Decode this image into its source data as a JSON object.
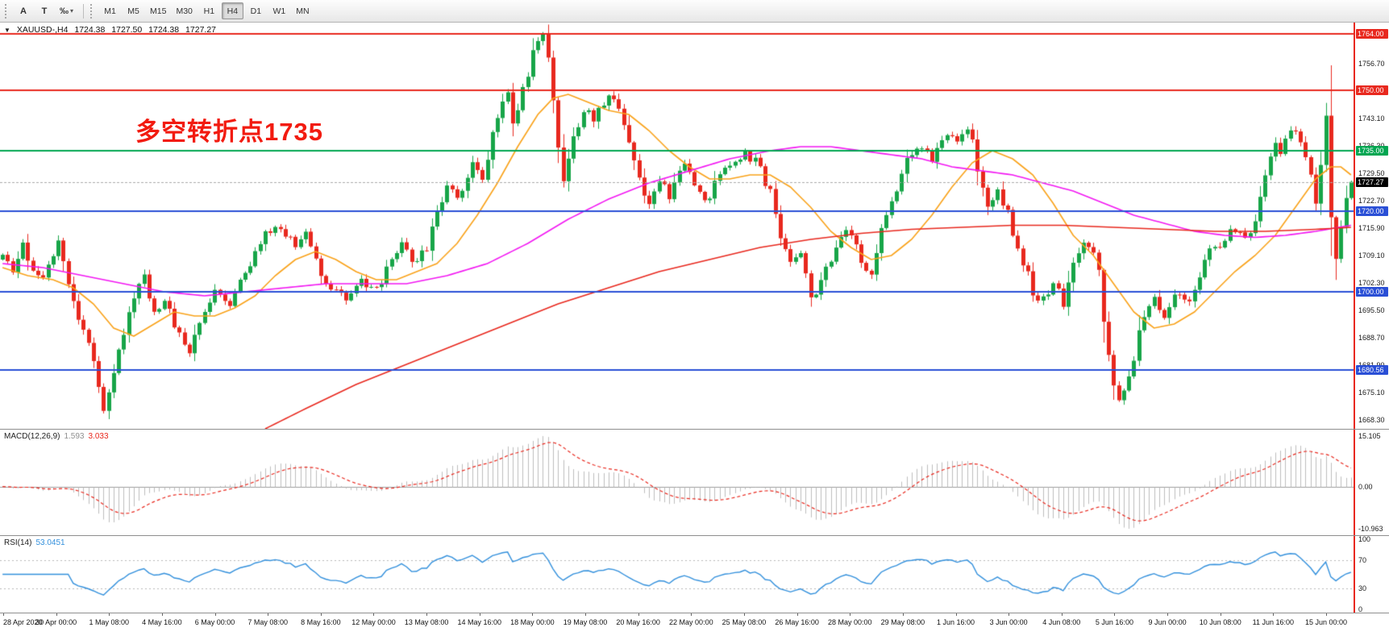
{
  "toolbar": {
    "buttons": [
      {
        "id": "arrow-tool",
        "label": "A"
      },
      {
        "id": "text-tool",
        "label": "T"
      },
      {
        "id": "fibonacci-tool",
        "label": "‰"
      }
    ],
    "timeframes": [
      {
        "label": "M1"
      },
      {
        "label": "M5"
      },
      {
        "label": "M15"
      },
      {
        "label": "M30"
      },
      {
        "label": "H1"
      },
      {
        "label": "H4",
        "active": true
      },
      {
        "label": "D1"
      },
      {
        "label": "W1"
      },
      {
        "label": "MN"
      }
    ]
  },
  "chart": {
    "collapse_icon": "▼",
    "symbol": "XAUUSD-,H4",
    "open": "1724.38",
    "high": "1727.50",
    "low": "1724.38",
    "close": "1727.27",
    "annotation": {
      "text": "多空转折点1735",
      "color": "#f21b10"
    }
  },
  "indicators": {
    "macd": {
      "label": "MACD(12,26,9)",
      "main_value": "1.593",
      "signal_value": "3.033",
      "axis_labels": [
        "15.105",
        "0.00",
        "-10.963"
      ]
    },
    "rsi": {
      "label": "RSI(14)",
      "value": "53.0451",
      "axis_labels": [
        "100",
        "70",
        "30",
        "0"
      ]
    }
  },
  "chart_data": {
    "type": "candlestick",
    "symbol": "XAUUSD",
    "timeframe": "H4",
    "ylim": [
      1666.0,
      1766.8
    ],
    "n_bars": 268,
    "last_close": 1727.27,
    "bull_color": "#17a548",
    "bear_color": "#e8281e",
    "close_waypoints": [
      [
        0,
        1708
      ],
      [
        2,
        1705
      ],
      [
        4,
        1711
      ],
      [
        6,
        1706
      ],
      [
        8,
        1704
      ],
      [
        10,
        1710
      ],
      [
        11,
        1714
      ],
      [
        13,
        1703
      ],
      [
        14,
        1697
      ],
      [
        16,
        1690
      ],
      [
        17,
        1688
      ],
      [
        18,
        1682
      ],
      [
        19,
        1676
      ],
      [
        20,
        1671
      ],
      [
        21,
        1676
      ],
      [
        23,
        1686
      ],
      [
        25,
        1694
      ],
      [
        26,
        1699
      ],
      [
        28,
        1704
      ],
      [
        30,
        1695
      ],
      [
        32,
        1698
      ],
      [
        34,
        1692
      ],
      [
        35,
        1690
      ],
      [
        37,
        1685
      ],
      [
        39,
        1692
      ],
      [
        41,
        1698
      ],
      [
        42,
        1701
      ],
      [
        44,
        1699
      ],
      [
        45,
        1697
      ],
      [
        47,
        1703
      ],
      [
        49,
        1707
      ],
      [
        51,
        1711
      ],
      [
        52,
        1714
      ],
      [
        54,
        1716
      ],
      [
        55,
        1715
      ],
      [
        57,
        1713
      ],
      [
        58,
        1711
      ],
      [
        60,
        1715
      ],
      [
        62,
        1709
      ],
      [
        63,
        1705
      ],
      [
        65,
        1700
      ],
      [
        67,
        1699
      ],
      [
        68,
        1697
      ],
      [
        70,
        1701
      ],
      [
        71,
        1703
      ],
      [
        73,
        1700
      ],
      [
        75,
        1702
      ],
      [
        76,
        1705
      ],
      [
        78,
        1709
      ],
      [
        79,
        1712
      ],
      [
        81,
        1708
      ],
      [
        83,
        1709
      ],
      [
        84,
        1711
      ],
      [
        86,
        1719
      ],
      [
        88,
        1727
      ],
      [
        90,
        1724
      ],
      [
        91,
        1726
      ],
      [
        93,
        1731
      ],
      [
        95,
        1729
      ],
      [
        97,
        1739
      ],
      [
        99,
        1747
      ],
      [
        100,
        1750
      ],
      [
        101,
        1742
      ],
      [
        103,
        1750
      ],
      [
        105,
        1759
      ],
      [
        106,
        1762
      ],
      [
        107,
        1763.5
      ],
      [
        108,
        1757
      ],
      [
        109,
        1748
      ],
      [
        110,
        1737
      ],
      [
        111,
        1728
      ],
      [
        112,
        1732
      ],
      [
        113,
        1738
      ],
      [
        115,
        1745
      ],
      [
        117,
        1743
      ],
      [
        119,
        1747
      ],
      [
        120,
        1749
      ],
      [
        122,
        1746
      ],
      [
        124,
        1738
      ],
      [
        126,
        1728
      ],
      [
        128,
        1722
      ],
      [
        130,
        1727
      ],
      [
        132,
        1724
      ],
      [
        134,
        1729
      ],
      [
        135,
        1732
      ],
      [
        137,
        1727
      ],
      [
        139,
        1723
      ],
      [
        140,
        1724
      ],
      [
        142,
        1729
      ],
      [
        144,
        1731
      ],
      [
        146,
        1734
      ],
      [
        147,
        1735
      ],
      [
        149,
        1732
      ],
      [
        150,
        1730
      ],
      [
        152,
        1725
      ],
      [
        154,
        1714
      ],
      [
        156,
        1708
      ],
      [
        158,
        1710
      ],
      [
        159,
        1704
      ],
      [
        160,
        1698
      ],
      [
        162,
        1703
      ],
      [
        164,
        1708
      ],
      [
        165,
        1710
      ],
      [
        167,
        1715
      ],
      [
        169,
        1711
      ],
      [
        170,
        1707
      ],
      [
        172,
        1705
      ],
      [
        174,
        1715
      ],
      [
        176,
        1723
      ],
      [
        178,
        1729
      ],
      [
        179,
        1732
      ],
      [
        181,
        1736
      ],
      [
        183,
        1734
      ],
      [
        184,
        1733
      ],
      [
        186,
        1738
      ],
      [
        187,
        1740
      ],
      [
        189,
        1736
      ],
      [
        191,
        1741
      ],
      [
        192,
        1737
      ],
      [
        193,
        1730
      ],
      [
        195,
        1722
      ],
      [
        197,
        1725
      ],
      [
        199,
        1720
      ],
      [
        201,
        1710
      ],
      [
        203,
        1704
      ],
      [
        204,
        1700
      ],
      [
        206,
        1698
      ],
      [
        208,
        1703
      ],
      [
        210,
        1697
      ],
      [
        212,
        1706
      ],
      [
        214,
        1712
      ],
      [
        216,
        1709
      ],
      [
        217,
        1705
      ],
      [
        218,
        1693
      ],
      [
        219,
        1684
      ],
      [
        220,
        1676
      ],
      [
        221,
        1672
      ],
      [
        222,
        1675
      ],
      [
        224,
        1684
      ],
      [
        226,
        1695
      ],
      [
        228,
        1698
      ],
      [
        230,
        1693
      ],
      [
        232,
        1700
      ],
      [
        234,
        1699
      ],
      [
        235,
        1698
      ],
      [
        237,
        1704
      ],
      [
        239,
        1712
      ],
      [
        241,
        1710
      ],
      [
        243,
        1716
      ],
      [
        245,
        1714
      ],
      [
        246,
        1713
      ],
      [
        248,
        1717
      ],
      [
        250,
        1728
      ],
      [
        252,
        1738
      ],
      [
        253,
        1735
      ],
      [
        255,
        1740
      ],
      [
        257,
        1737
      ],
      [
        259,
        1728
      ],
      [
        260,
        1722
      ],
      [
        261,
        1732
      ],
      [
        262,
        1744
      ],
      [
        263,
        1718
      ],
      [
        264,
        1707
      ],
      [
        265,
        1716
      ],
      [
        266,
        1722
      ],
      [
        267,
        1727.27
      ]
    ],
    "overlays": [
      {
        "name": "ma-fast-orange",
        "color": "#f9a21a",
        "waypoints": [
          [
            0,
            1706
          ],
          [
            5,
            1704
          ],
          [
            10,
            1703
          ],
          [
            14,
            1701
          ],
          [
            18,
            1697
          ],
          [
            22,
            1691
          ],
          [
            26,
            1689
          ],
          [
            30,
            1692
          ],
          [
            34,
            1695
          ],
          [
            38,
            1694
          ],
          [
            42,
            1694
          ],
          [
            46,
            1696
          ],
          [
            50,
            1699
          ],
          [
            54,
            1704
          ],
          [
            58,
            1708
          ],
          [
            62,
            1710
          ],
          [
            66,
            1708
          ],
          [
            70,
            1705
          ],
          [
            74,
            1703
          ],
          [
            78,
            1703
          ],
          [
            82,
            1705
          ],
          [
            86,
            1707
          ],
          [
            90,
            1712
          ],
          [
            94,
            1719
          ],
          [
            98,
            1727
          ],
          [
            102,
            1736
          ],
          [
            106,
            1744
          ],
          [
            109,
            1748
          ],
          [
            112,
            1749
          ],
          [
            116,
            1747
          ],
          [
            120,
            1745
          ],
          [
            124,
            1744
          ],
          [
            128,
            1740
          ],
          [
            132,
            1735
          ],
          [
            136,
            1731
          ],
          [
            140,
            1728
          ],
          [
            144,
            1728
          ],
          [
            148,
            1729
          ],
          [
            152,
            1729
          ],
          [
            156,
            1726
          ],
          [
            160,
            1721
          ],
          [
            164,
            1715
          ],
          [
            168,
            1711
          ],
          [
            172,
            1708
          ],
          [
            176,
            1709
          ],
          [
            180,
            1713
          ],
          [
            184,
            1719
          ],
          [
            188,
            1726
          ],
          [
            192,
            1732
          ],
          [
            196,
            1735
          ],
          [
            200,
            1733
          ],
          [
            204,
            1729
          ],
          [
            208,
            1722
          ],
          [
            212,
            1714
          ],
          [
            216,
            1709
          ],
          [
            220,
            1702
          ],
          [
            224,
            1695
          ],
          [
            228,
            1691
          ],
          [
            232,
            1692
          ],
          [
            236,
            1695
          ],
          [
            240,
            1700
          ],
          [
            244,
            1705
          ],
          [
            248,
            1709
          ],
          [
            252,
            1714
          ],
          [
            256,
            1721
          ],
          [
            260,
            1728
          ],
          [
            263,
            1731
          ],
          [
            265,
            1731
          ],
          [
            267,
            1729
          ]
        ]
      },
      {
        "name": "ma-mid-magenta",
        "color": "#f218f2",
        "waypoints": [
          [
            0,
            1707
          ],
          [
            8,
            1706
          ],
          [
            16,
            1704
          ],
          [
            24,
            1702
          ],
          [
            32,
            1700
          ],
          [
            40,
            1699
          ],
          [
            48,
            1700
          ],
          [
            56,
            1701
          ],
          [
            64,
            1702
          ],
          [
            72,
            1702
          ],
          [
            80,
            1702
          ],
          [
            88,
            1704
          ],
          [
            96,
            1707
          ],
          [
            104,
            1712
          ],
          [
            112,
            1718
          ],
          [
            120,
            1723
          ],
          [
            128,
            1727
          ],
          [
            136,
            1730
          ],
          [
            144,
            1733
          ],
          [
            152,
            1735
          ],
          [
            158,
            1736
          ],
          [
            164,
            1736
          ],
          [
            170,
            1735
          ],
          [
            176,
            1734
          ],
          [
            182,
            1733
          ],
          [
            188,
            1731
          ],
          [
            194,
            1730
          ],
          [
            200,
            1729
          ],
          [
            206,
            1727
          ],
          [
            212,
            1725
          ],
          [
            218,
            1722
          ],
          [
            224,
            1719
          ],
          [
            230,
            1717
          ],
          [
            236,
            1715
          ],
          [
            242,
            1714
          ],
          [
            248,
            1713.5
          ],
          [
            254,
            1714
          ],
          [
            260,
            1715
          ],
          [
            267,
            1716.5
          ]
        ]
      },
      {
        "name": "ma-slow-red",
        "color": "#e8281e",
        "waypoints": [
          [
            52,
            1666
          ],
          [
            60,
            1671
          ],
          [
            70,
            1677
          ],
          [
            80,
            1682
          ],
          [
            90,
            1687
          ],
          [
            100,
            1692
          ],
          [
            110,
            1697
          ],
          [
            120,
            1701
          ],
          [
            130,
            1705
          ],
          [
            140,
            1708
          ],
          [
            150,
            1711
          ],
          [
            160,
            1713
          ],
          [
            170,
            1714.5
          ],
          [
            180,
            1715.5
          ],
          [
            190,
            1716
          ],
          [
            200,
            1716.5
          ],
          [
            210,
            1716.5
          ],
          [
            220,
            1716
          ],
          [
            230,
            1715.5
          ],
          [
            240,
            1715
          ],
          [
            250,
            1715
          ],
          [
            260,
            1715.5
          ],
          [
            267,
            1716
          ]
        ]
      }
    ],
    "levels": [
      {
        "price": 1764.0,
        "color": "#e8281e",
        "width": 2,
        "badge": "1764.00"
      },
      {
        "price": 1750.0,
        "color": "#e8281e",
        "width": 2,
        "badge": "1750.00"
      },
      {
        "price": 1735.0,
        "color": "#00a651",
        "width": 2,
        "badge": "1735.00"
      },
      {
        "price": 1720.0,
        "color": "#2a4fd6",
        "width": 2,
        "badge": "1720.00"
      },
      {
        "price": 1700.0,
        "color": "#2a4fd6",
        "width": 2,
        "badge": "1700.00"
      },
      {
        "price": 1680.56,
        "color": "#2a4fd6",
        "width": 2,
        "badge": "1680.56"
      }
    ],
    "current_price": {
      "price": 1727.27,
      "badge": "1727.27",
      "badge_bg": "#000000",
      "line_color": "#aaaaaa"
    },
    "price_grid_labels": [
      "1756.70",
      "1743.10",
      "1736.30",
      "1729.50",
      "1722.70",
      "1715.90",
      "1709.10",
      "1702.30",
      "1695.50",
      "1688.70",
      "1681.90",
      "1675.10",
      "1668.30"
    ],
    "macd": {
      "params": [
        12,
        26,
        9
      ],
      "hist_color": "#bdbdbd",
      "signal_color": "#e8281e"
    },
    "rsi": {
      "period": 14,
      "levels": [
        70,
        30
      ],
      "color": "#3390dc"
    },
    "time_labels": [
      "28 Apr 2020",
      "30 Apr 00:00",
      "1 May 08:00",
      "4 May 16:00",
      "6 May 00:00",
      "7 May 08:00",
      "8 May 16:00",
      "12 May 00:00",
      "13 May 08:00",
      "14 May 16:00",
      "18 May 00:00",
      "19 May 08:00",
      "20 May 16:00",
      "22 May 00:00",
      "25 May 08:00",
      "26 May 16:00",
      "28 May 00:00",
      "29 May 08:00",
      "1 Jun 16:00",
      "3 Jun 00:00",
      "4 Jun 08:00",
      "5 Jun 16:00",
      "9 Jun 00:00",
      "10 Jun 08:00",
      "11 Jun 16:00",
      "15 Jun 00:00"
    ]
  }
}
